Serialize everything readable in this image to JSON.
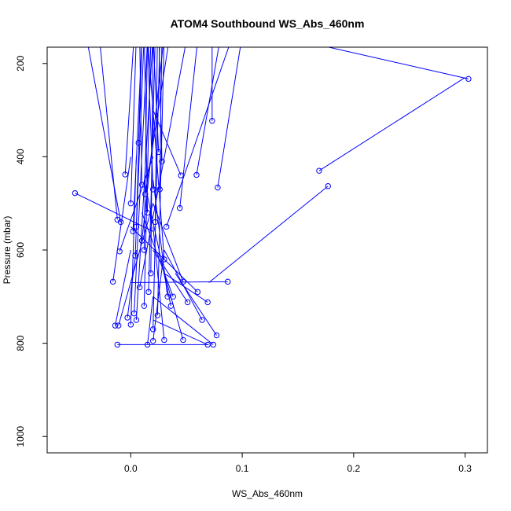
{
  "chart_data": {
    "type": "line",
    "title": "ATOM4 Southbound WS_Abs_460nm",
    "xlabel": "WS_Abs_460nm",
    "ylabel": "Pressure (mbar)",
    "xlim": [
      -0.075,
      0.32
    ],
    "ylim": [
      1035,
      165
    ],
    "y_axis_inverted": true,
    "xticks": [
      0.0,
      0.1,
      0.2,
      0.3
    ],
    "xtick_labels": [
      "0.0",
      "0.1",
      "0.2",
      "0.3"
    ],
    "yticks": [
      200,
      400,
      600,
      800,
      1000
    ],
    "ytick_labels": [
      "200",
      "400",
      "600",
      "800",
      "1000"
    ],
    "grid": false,
    "color": "#0000ff",
    "marker": "open-circle",
    "series": [
      {
        "points": [
          [
            0.303,
            233
          ],
          [
            0.15,
            150
          ]
        ]
      },
      {
        "points": [
          [
            0.169,
            430
          ],
          [
            0.3,
            230
          ]
        ]
      },
      {
        "points": [
          [
            0.177,
            463
          ],
          [
            0.07,
            670
          ]
        ]
      },
      {
        "points": [
          [
            0.087,
            668
          ],
          [
            0.0,
            670
          ]
        ]
      },
      {
        "points": [
          [
            0.073,
            323
          ],
          [
            0.073,
            100
          ]
        ]
      },
      {
        "points": [
          [
            0.078,
            466
          ],
          [
            0.1,
            140
          ]
        ]
      },
      {
        "points": [
          [
            0.059,
            439
          ],
          [
            0.08,
            150
          ]
        ]
      },
      {
        "points": [
          [
            -0.05,
            478
          ],
          [
            0.02,
            560
          ]
        ]
      },
      {
        "points": [
          [
            -0.016,
            668
          ],
          [
            0.0,
            400
          ]
        ]
      },
      {
        "points": [
          [
            -0.014,
            762
          ],
          [
            0.0,
            600
          ]
        ]
      },
      {
        "points": [
          [
            -0.011,
            762
          ],
          [
            0.02,
            500
          ]
        ]
      },
      {
        "points": [
          [
            -0.012,
            535
          ],
          [
            -0.03,
            100
          ]
        ]
      },
      {
        "points": [
          [
            -0.009,
            540
          ],
          [
            -0.04,
            140
          ]
        ]
      },
      {
        "points": [
          [
            -0.01,
            603
          ],
          [
            0.02,
            400
          ]
        ]
      },
      {
        "points": [
          [
            -0.012,
            803
          ],
          [
            0.07,
            803
          ]
        ]
      },
      {
        "points": [
          [
            0.015,
            803
          ],
          [
            0.02,
            700
          ]
        ]
      },
      {
        "points": [
          [
            0.02,
            795
          ],
          [
            0.03,
            600
          ]
        ]
      },
      {
        "points": [
          [
            0.03,
            793
          ],
          [
            0.02,
            550
          ]
        ]
      },
      {
        "points": [
          [
            0.047,
            793
          ],
          [
            0.03,
            650
          ]
        ]
      },
      {
        "points": [
          [
            0.069,
            803
          ],
          [
            0.02,
            750
          ]
        ]
      },
      {
        "points": [
          [
            0.074,
            803
          ],
          [
            0.02,
            700
          ]
        ]
      },
      {
        "points": [
          [
            0.077,
            783
          ],
          [
            0.04,
            650
          ]
        ]
      },
      {
        "points": [
          [
            0.064,
            750
          ],
          [
            0.03,
            600
          ]
        ]
      },
      {
        "points": [
          [
            0.069,
            712
          ],
          [
            0.03,
            650
          ]
        ]
      },
      {
        "points": [
          [
            0.051,
            712
          ],
          [
            0.02,
            600
          ]
        ]
      },
      {
        "points": [
          [
            0.047,
            668
          ],
          [
            0.02,
            500
          ]
        ]
      },
      {
        "points": [
          [
            0.045,
            440
          ],
          [
            0.02,
            300
          ]
        ]
      },
      {
        "points": [
          [
            0.044,
            510
          ],
          [
            0.06,
            150
          ]
        ]
      },
      {
        "points": [
          [
            0.03,
            620
          ],
          [
            0.015,
            140
          ]
        ]
      },
      {
        "points": [
          [
            0.028,
            410
          ],
          [
            0.025,
            120
          ]
        ]
      },
      {
        "points": [
          [
            0.025,
            390
          ],
          [
            0.02,
            140
          ]
        ]
      },
      {
        "points": [
          [
            0.02,
            470
          ],
          [
            0.015,
            150
          ]
        ]
      },
      {
        "points": [
          [
            0.015,
            520
          ],
          [
            0.012,
            130
          ]
        ]
      },
      {
        "points": [
          [
            0.01,
            460
          ],
          [
            0.008,
            140
          ]
        ]
      },
      {
        "points": [
          [
            0.007,
            370
          ],
          [
            0.01,
            140
          ]
        ]
      },
      {
        "points": [
          [
            0.005,
            550
          ],
          [
            0.01,
            150
          ]
        ]
      },
      {
        "points": [
          [
            0.012,
            600
          ],
          [
            0.015,
            140
          ]
        ]
      },
      {
        "points": [
          [
            0.018,
            650
          ],
          [
            0.02,
            150
          ]
        ]
      },
      {
        "points": [
          [
            0.022,
            540
          ],
          [
            0.024,
            120
          ]
        ]
      },
      {
        "points": [
          [
            0.026,
            470
          ],
          [
            0.028,
            140
          ]
        ]
      },
      {
        "points": [
          [
            -0.005,
            438
          ],
          [
            0.003,
            140
          ]
        ]
      },
      {
        "points": [
          [
            0.0,
            500
          ],
          [
            0.005,
            140
          ]
        ]
      },
      {
        "points": [
          [
            0.002,
            560
          ],
          [
            0.01,
            150
          ]
        ]
      },
      {
        "points": [
          [
            0.004,
            612
          ],
          [
            0.012,
            140
          ]
        ]
      },
      {
        "points": [
          [
            0.003,
            736
          ],
          [
            0.015,
            150
          ]
        ]
      },
      {
        "points": [
          [
            0.005,
            750
          ],
          [
            0.02,
            140
          ]
        ]
      },
      {
        "points": [
          [
            0.012,
            720
          ],
          [
            0.018,
            150
          ]
        ]
      },
      {
        "points": [
          [
            0.016,
            690
          ],
          [
            0.022,
            140
          ]
        ]
      },
      {
        "points": [
          [
            0.02,
            770
          ],
          [
            0.026,
            150
          ]
        ]
      },
      {
        "points": [
          [
            0.024,
            740
          ],
          [
            0.03,
            140
          ]
        ]
      },
      {
        "points": [
          [
            0.033,
            700
          ],
          [
            0.02,
            450
          ]
        ]
      },
      {
        "points": [
          [
            0.036,
            720
          ],
          [
            0.012,
            450
          ]
        ]
      },
      {
        "points": [
          [
            0.038,
            700
          ],
          [
            0.01,
            520
          ]
        ]
      },
      {
        "points": [
          [
            0.01,
            580
          ],
          [
            0.03,
            140
          ]
        ]
      },
      {
        "points": [
          [
            0.013,
            480
          ],
          [
            0.035,
            140
          ]
        ]
      },
      {
        "points": [
          [
            0.0,
            760
          ],
          [
            0.005,
            400
          ]
        ]
      },
      {
        "points": [
          [
            -0.003,
            745
          ],
          [
            0.005,
            600
          ]
        ]
      },
      {
        "points": [
          [
            0.008,
            680
          ],
          [
            0.05,
            150
          ]
        ]
      },
      {
        "points": [
          [
            0.032,
            550
          ],
          [
            0.09,
            150
          ]
        ]
      },
      {
        "points": [
          [
            0.06,
            690
          ],
          [
            0.0,
            550
          ]
        ]
      }
    ]
  }
}
